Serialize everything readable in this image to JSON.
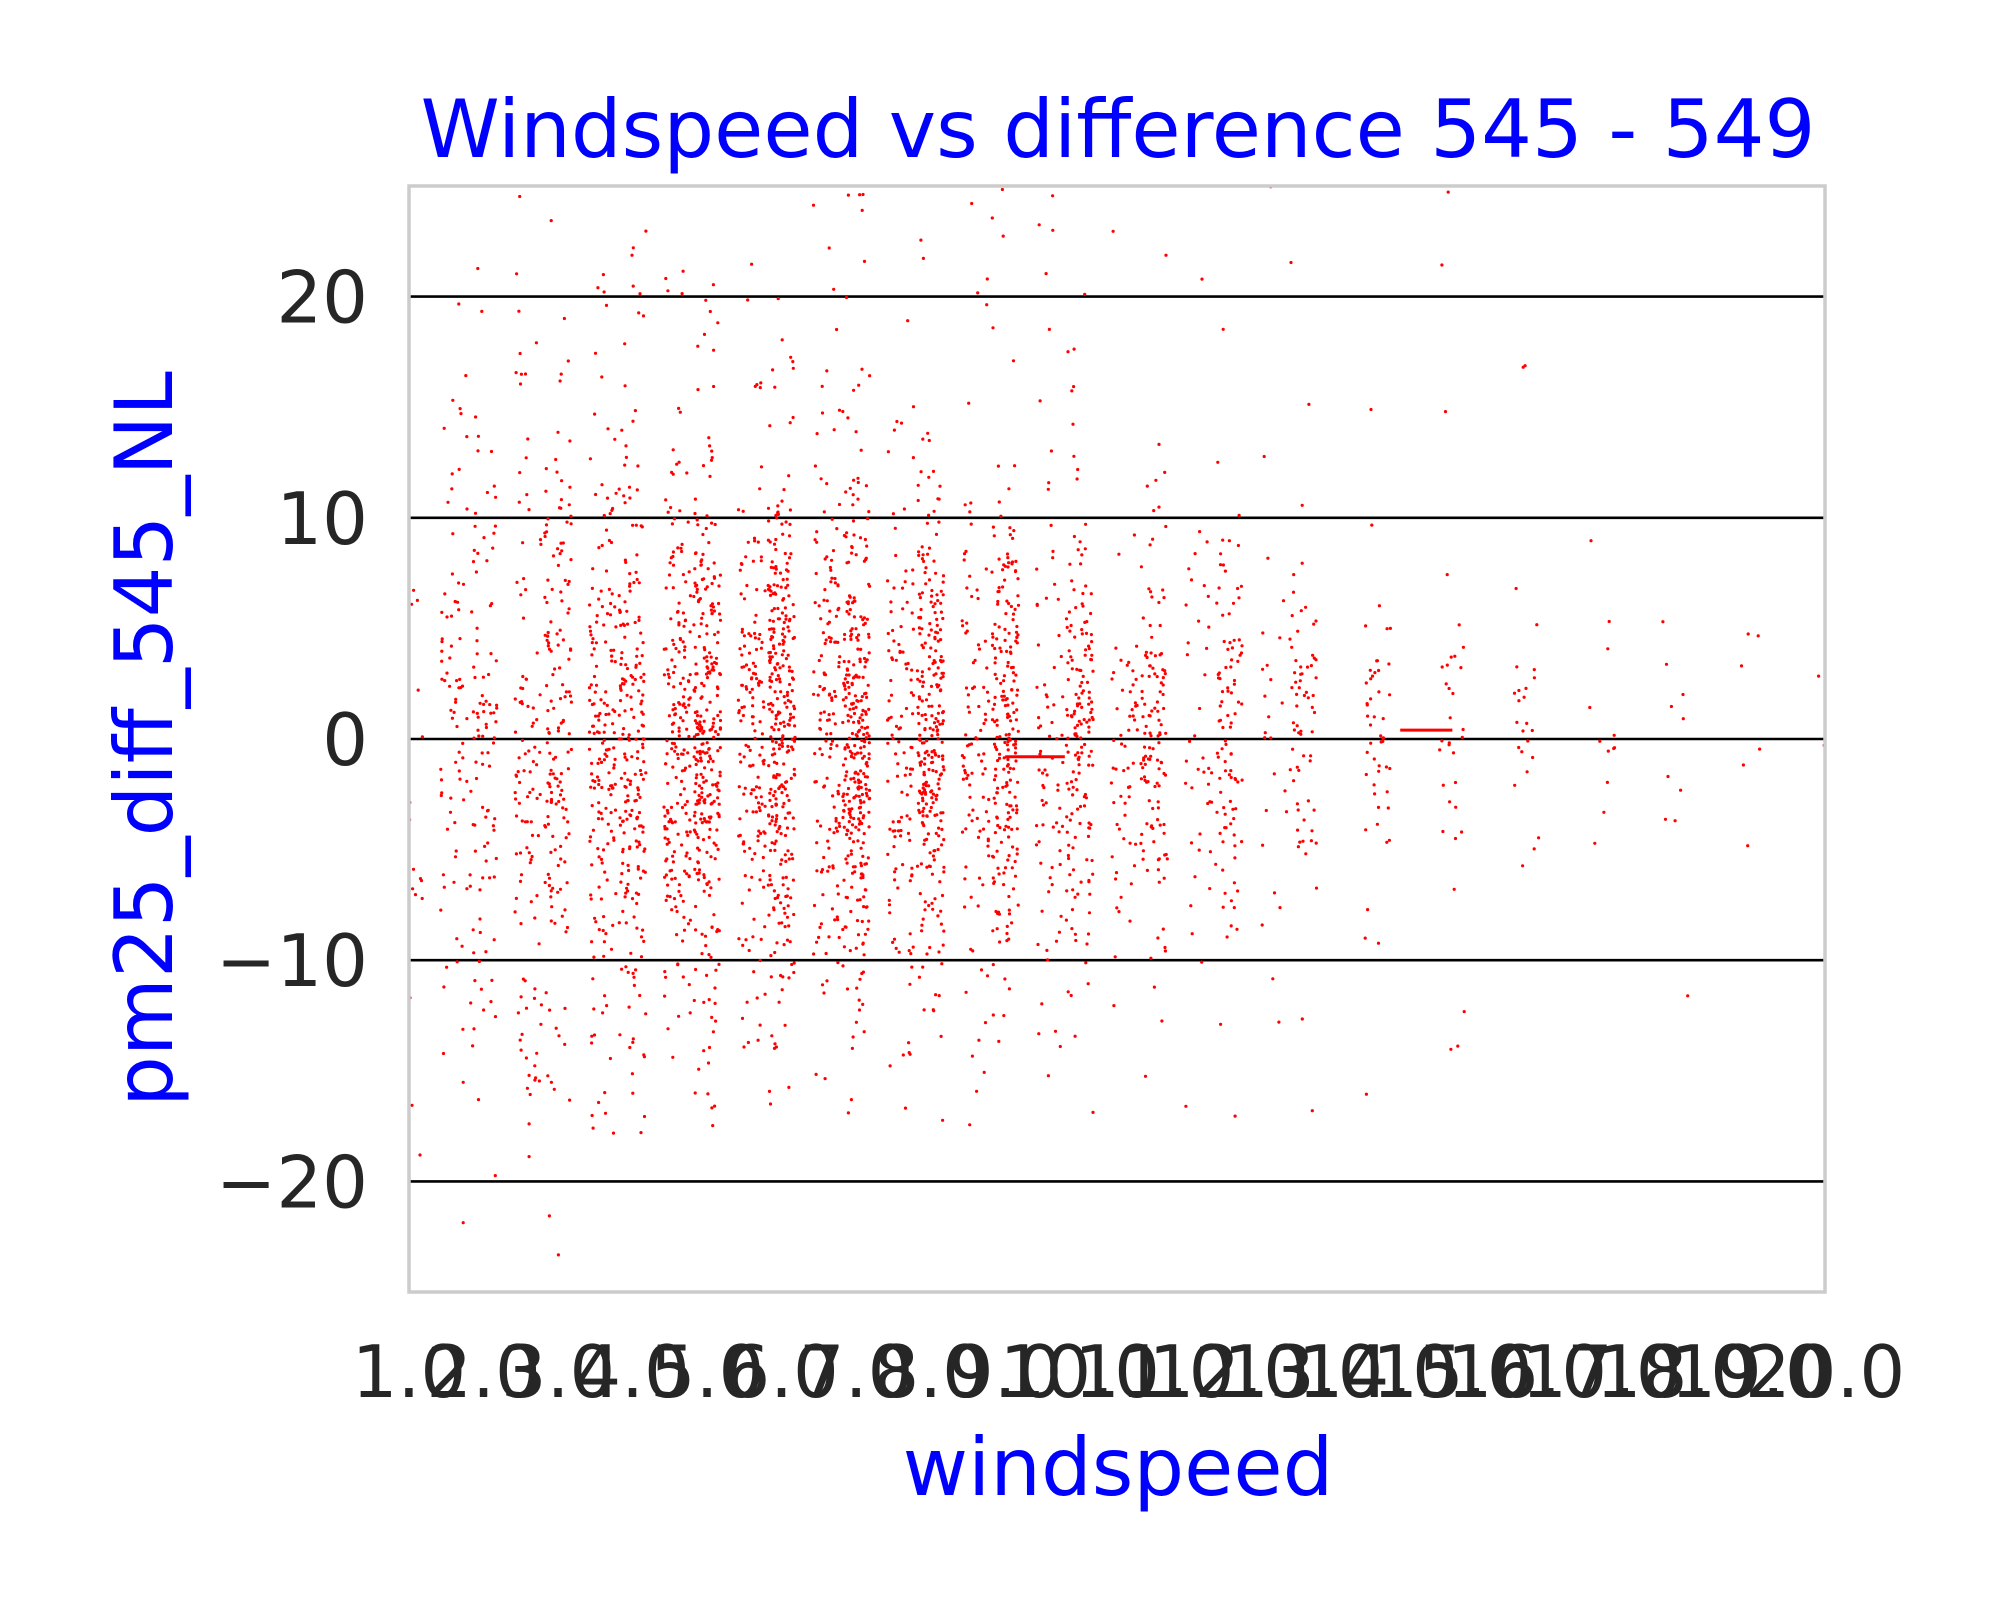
{
  "chart_data": {
    "type": "scatter",
    "title": "Windspeed vs difference 545 - 549",
    "xlabel": "windspeed",
    "ylabel": "pm25_diff_545_NL",
    "xlim": [
      1.0,
      20.0
    ],
    "ylim": [
      -25,
      25
    ],
    "x_ticks": [
      "1.0",
      "2.0",
      "3.0",
      "4.0",
      "5.0",
      "6.0",
      "7.0",
      "8.0",
      "9.0",
      "10.0",
      "11.0",
      "12.0",
      "13.0",
      "14.0",
      "15.0",
      "16.0",
      "17.0",
      "18.0",
      "19.0",
      "20.0"
    ],
    "y_ticks": [
      -20,
      -10,
      0,
      10,
      20
    ],
    "y_tick_labels": [
      "−20",
      "−10",
      "0",
      "10",
      "20"
    ],
    "grid": "horizontal",
    "marker_color": "#ff0000",
    "series": [
      {
        "clusters": [
          {
            "x": 1.0,
            "count": 40,
            "sd": 9.0
          },
          {
            "x": 1.6,
            "count": 80,
            "sd": 8.5
          },
          {
            "x": 2.0,
            "count": 100,
            "sd": 8.0
          },
          {
            "x": 2.6,
            "count": 110,
            "sd": 7.5
          },
          {
            "x": 3.0,
            "count": 160,
            "sd": 7.5
          },
          {
            "x": 3.6,
            "count": 180,
            "sd": 7.0
          },
          {
            "x": 4.0,
            "count": 220,
            "sd": 6.5
          },
          {
            "x": 4.6,
            "count": 200,
            "sd": 6.5
          },
          {
            "x": 5.0,
            "count": 300,
            "sd": 6.0
          },
          {
            "x": 5.6,
            "count": 160,
            "sd": 6.0
          },
          {
            "x": 6.0,
            "count": 320,
            "sd": 5.8
          },
          {
            "x": 6.6,
            "count": 150,
            "sd": 5.8
          },
          {
            "x": 7.0,
            "count": 330,
            "sd": 5.5
          },
          {
            "x": 7.6,
            "count": 120,
            "sd": 5.5
          },
          {
            "x": 8.0,
            "count": 280,
            "sd": 5.3
          },
          {
            "x": 8.6,
            "count": 100,
            "sd": 5.3
          },
          {
            "x": 9.0,
            "count": 230,
            "sd": 5.0
          },
          {
            "x": 9.6,
            "count": 80,
            "sd": 5.0
          },
          {
            "x": 10.0,
            "count": 170,
            "sd": 4.8
          },
          {
            "x": 10.6,
            "count": 60,
            "sd": 4.8
          },
          {
            "x": 11.0,
            "count": 130,
            "sd": 4.6
          },
          {
            "x": 11.6,
            "count": 40,
            "sd": 4.6
          },
          {
            "x": 12.0,
            "count": 100,
            "sd": 4.4
          },
          {
            "x": 12.6,
            "count": 25,
            "sd": 4.4
          },
          {
            "x": 13.0,
            "count": 70,
            "sd": 4.2
          },
          {
            "x": 14.0,
            "count": 50,
            "sd": 4.0
          },
          {
            "x": 15.0,
            "count": 35,
            "sd": 3.8
          },
          {
            "x": 16.0,
            "count": 25,
            "sd": 3.6
          },
          {
            "x": 17.0,
            "count": 12,
            "sd": 3.5
          },
          {
            "x": 18.0,
            "count": 10,
            "sd": 3.5
          },
          {
            "x": 19.0,
            "count": 6,
            "sd": 3.5
          },
          {
            "x": 20.0,
            "count": 4,
            "sd": 3.5
          }
        ]
      }
    ],
    "reference_segments": [
      {
        "x": [
          9.0,
          9.8
        ],
        "y": -0.8
      },
      {
        "x": [
          14.3,
          15.0
        ],
        "y": 0.4
      }
    ]
  }
}
